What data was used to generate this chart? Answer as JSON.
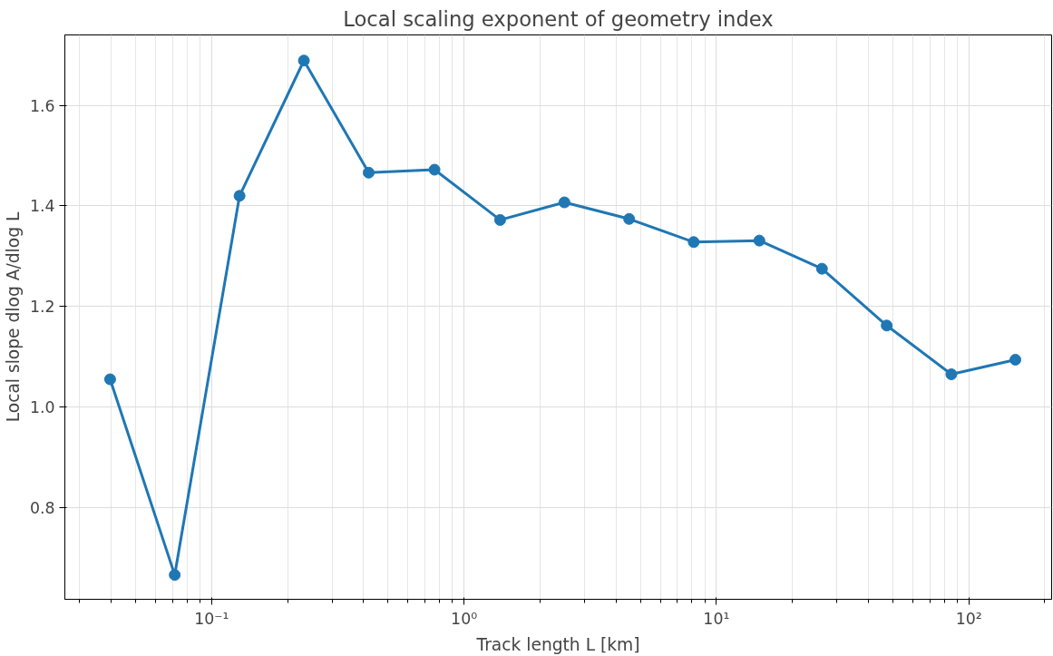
{
  "chart_data": {
    "type": "line",
    "title": "Local scaling exponent of geometry index",
    "xlabel": "Track length L [km]",
    "ylabel": "Local slope dlog A/dlog L",
    "x": [
      0.0396,
      0.0714,
      0.129,
      0.232,
      0.419,
      0.764,
      1.39,
      2.5,
      4.51,
      8.13,
      14.8,
      26.2,
      47.3,
      85.3,
      153
    ],
    "series": [
      {
        "color": "#1f77b4",
        "values": [
          1.055,
          0.666,
          1.42,
          1.689,
          1.466,
          1.472,
          1.372,
          1.407,
          1.374,
          1.328,
          1.331,
          1.275,
          1.162,
          1.065,
          1.094
        ]
      }
    ],
    "log": "x",
    "xlim": [
      0.0262,
      213
    ],
    "ylim": [
      0.6175,
      1.74
    ],
    "xticks": [
      {
        "value": 0.1,
        "label": "10⁻¹"
      },
      {
        "value": 1,
        "label": "10⁰"
      },
      {
        "value": 10,
        "label": "10¹"
      },
      {
        "value": 100,
        "label": "10²"
      }
    ],
    "yticks": [
      {
        "value": 0.8,
        "label": "0.8"
      },
      {
        "value": 1.0,
        "label": "1.0"
      },
      {
        "value": 1.2,
        "label": "1.2"
      },
      {
        "value": 1.4,
        "label": "1.4"
      },
      {
        "value": 1.6,
        "label": "1.6"
      }
    ],
    "grid": true,
    "marker": "circle",
    "line_style": "solid"
  }
}
